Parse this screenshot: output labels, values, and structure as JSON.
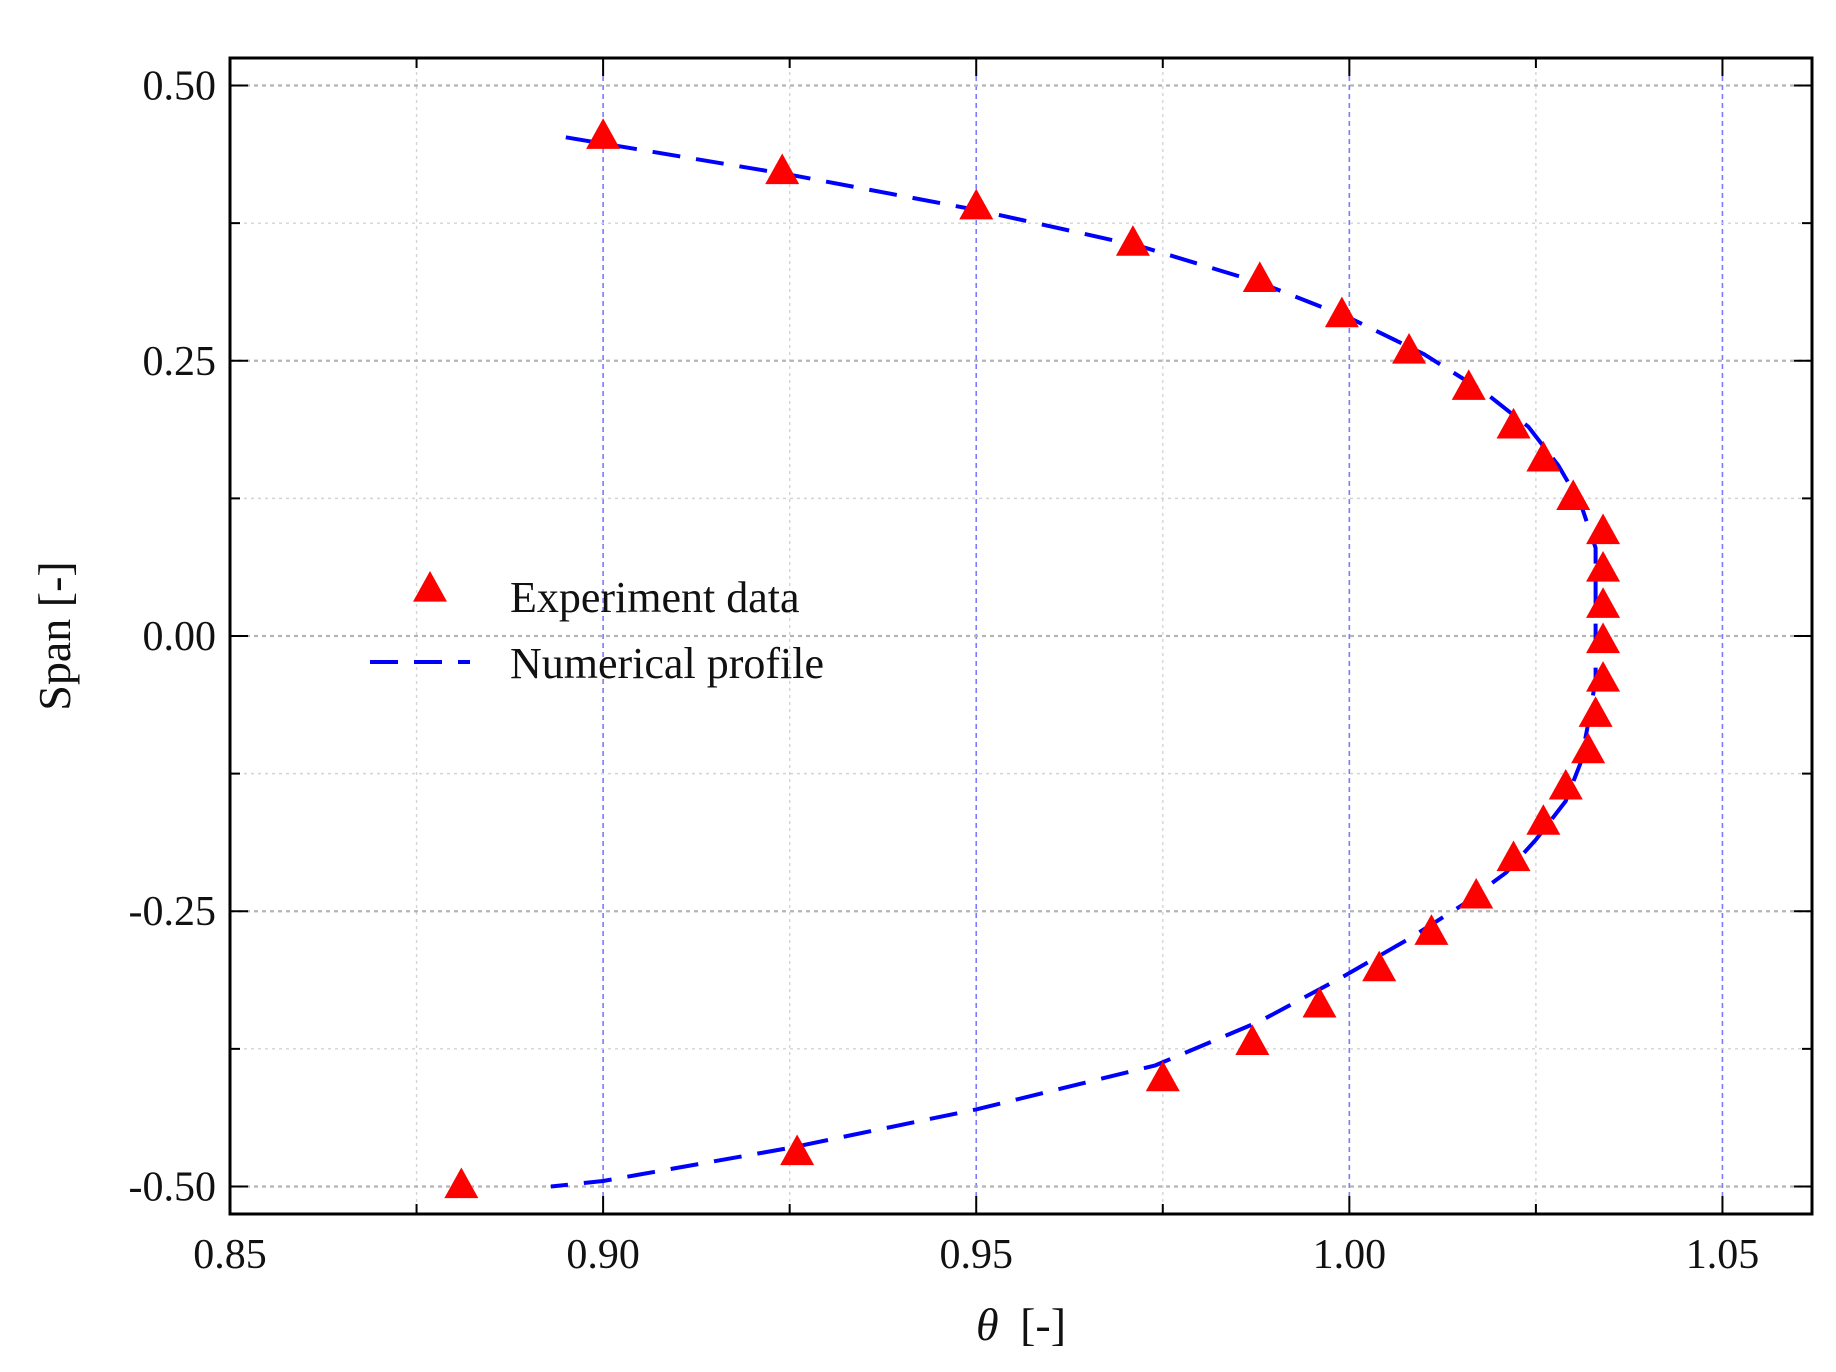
{
  "chart_data": {
    "type": "scatter",
    "title": "",
    "xlabel_symbol": "θ",
    "xlabel_unit": "[-]",
    "ylabel": "Span [-]",
    "xlim": [
      0.85,
      1.062
    ],
    "ylim": [
      -0.525,
      0.525
    ],
    "x_ticks": [
      0.85,
      0.9,
      0.95,
      1.0,
      1.05
    ],
    "x_tick_labels": [
      "0.85",
      "0.90",
      "0.95",
      "1.00",
      "1.05"
    ],
    "y_ticks": [
      -0.5,
      -0.25,
      0.0,
      0.25,
      0.5
    ],
    "y_tick_labels": [
      "-0.50",
      "-0.25",
      "0.00",
      "0.25",
      "0.50"
    ],
    "grid": true,
    "legend_position": "center-left",
    "series": [
      {
        "name": "Experiment data",
        "type": "scatter",
        "marker": "triangle",
        "color": "#ff0000",
        "points": [
          [
            0.9,
            0.453
          ],
          [
            0.924,
            0.421
          ],
          [
            0.95,
            0.389
          ],
          [
            0.971,
            0.356
          ],
          [
            0.988,
            0.323
          ],
          [
            0.999,
            0.291
          ],
          [
            1.008,
            0.258
          ],
          [
            1.016,
            0.225
          ],
          [
            1.022,
            0.19
          ],
          [
            1.026,
            0.16
          ],
          [
            1.03,
            0.125
          ],
          [
            1.034,
            0.094
          ],
          [
            1.034,
            0.06
          ],
          [
            1.034,
            0.027
          ],
          [
            1.034,
            -0.005
          ],
          [
            1.034,
            -0.04
          ],
          [
            1.033,
            -0.072
          ],
          [
            1.032,
            -0.105
          ],
          [
            1.029,
            -0.138
          ],
          [
            1.026,
            -0.17
          ],
          [
            1.022,
            -0.203
          ],
          [
            1.017,
            -0.237
          ],
          [
            1.011,
            -0.27
          ],
          [
            1.004,
            -0.303
          ],
          [
            0.996,
            -0.336
          ],
          [
            0.987,
            -0.37
          ],
          [
            0.975,
            -0.403
          ],
          [
            0.926,
            -0.47
          ],
          [
            0.881,
            -0.5
          ]
        ]
      },
      {
        "name": "Numerical profile",
        "type": "line",
        "line_style": "dashed",
        "color": "#0000ff",
        "points": [
          [
            0.895,
            0.453
          ],
          [
            0.925,
            0.419
          ],
          [
            0.95,
            0.387
          ],
          [
            0.972,
            0.354
          ],
          [
            0.988,
            0.321
          ],
          [
            1.0,
            0.289
          ],
          [
            1.01,
            0.256
          ],
          [
            1.018,
            0.222
          ],
          [
            1.024,
            0.19
          ],
          [
            1.028,
            0.155
          ],
          [
            1.031,
            0.12
          ],
          [
            1.033,
            0.08
          ],
          [
            1.033,
            0.04
          ],
          [
            1.033,
            0.0
          ],
          [
            1.033,
            -0.04
          ],
          [
            1.032,
            -0.08
          ],
          [
            1.031,
            -0.115
          ],
          [
            1.029,
            -0.15
          ],
          [
            1.025,
            -0.185
          ],
          [
            1.021,
            -0.215
          ],
          [
            1.015,
            -0.245
          ],
          [
            1.008,
            -0.275
          ],
          [
            0.999,
            -0.31
          ],
          [
            0.988,
            -0.35
          ],
          [
            0.974,
            -0.39
          ],
          [
            0.95,
            -0.43
          ],
          [
            0.925,
            -0.465
          ],
          [
            0.9,
            -0.495
          ],
          [
            0.893,
            -0.5
          ]
        ]
      }
    ]
  }
}
